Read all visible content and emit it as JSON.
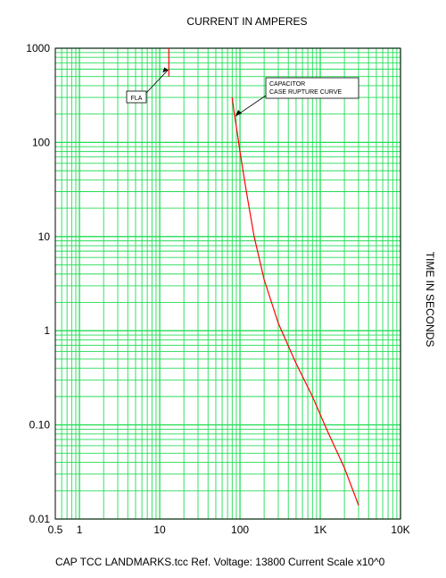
{
  "chart_data": {
    "type": "line",
    "title": "CURRENT IN AMPERES",
    "ylabel": "TIME IN SECONDS",
    "footer": "CAP TCC LANDMARKS.tcc   Ref. Voltage: 13800   Current Scale x10^0",
    "x_scale": "log",
    "y_scale": "log",
    "xlim": [
      0.5,
      10000
    ],
    "ylim": [
      0.01,
      1000
    ],
    "grid": true,
    "grid_color": "#22dd55",
    "x_ticks": [
      {
        "value": 0.5,
        "label": "0.5"
      },
      {
        "value": 1,
        "label": "1"
      },
      {
        "value": 10,
        "label": "10"
      },
      {
        "value": 100,
        "label": "100"
      },
      {
        "value": 1000,
        "label": "1K"
      },
      {
        "value": 10000,
        "label": "10K"
      }
    ],
    "y_ticks": [
      {
        "value": 1000,
        "label": "1000"
      },
      {
        "value": 100,
        "label": "100"
      },
      {
        "value": 10,
        "label": "10"
      },
      {
        "value": 1,
        "label": "1"
      },
      {
        "value": 0.1,
        "label": "0.10"
      },
      {
        "value": 0.01,
        "label": "0.01"
      }
    ],
    "series": [
      {
        "color": "#ff0000",
        "x": [
          13,
          13
        ],
        "y": [
          1000,
          500
        ]
      },
      {
        "color": "#ff0000",
        "x": [
          80,
          85,
          92,
          100,
          120,
          150,
          200,
          300,
          500,
          800,
          1200,
          2000,
          3000
        ],
        "y": [
          300,
          200,
          130,
          80,
          30,
          10,
          3.5,
          1.2,
          0.45,
          0.2,
          0.09,
          0.035,
          0.014
        ]
      }
    ],
    "annotations": [
      {
        "text": "FLA",
        "x": 13,
        "y": 700
      },
      {
        "lines": [
          "CAPACITOR",
          "CASE RUPTURE CURVE"
        ],
        "x": 90,
        "y": 180
      }
    ]
  }
}
